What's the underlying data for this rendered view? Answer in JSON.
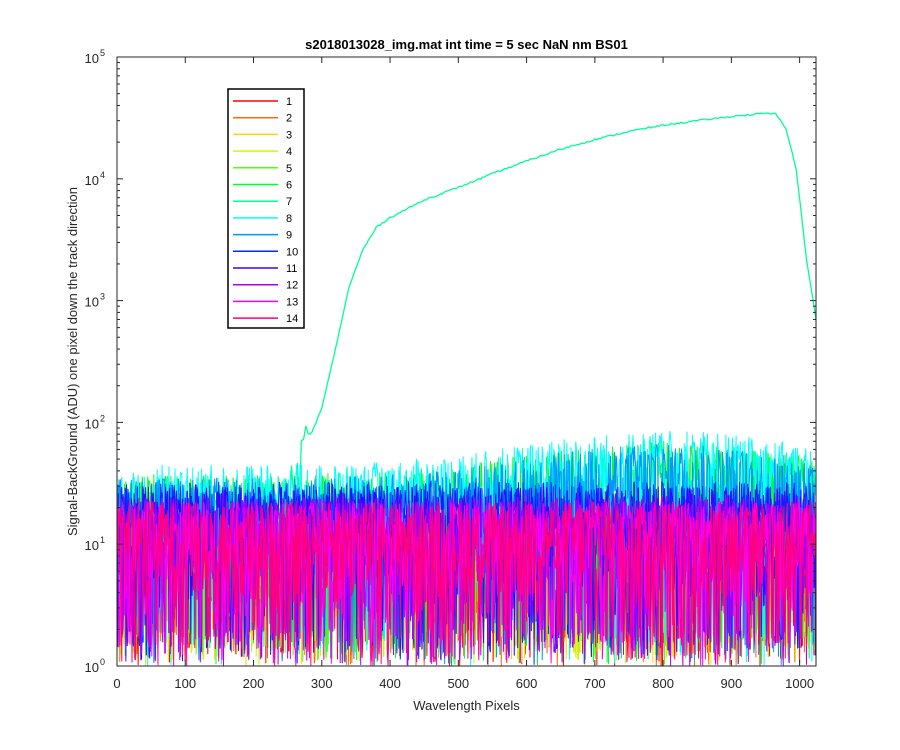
{
  "chart_data": {
    "type": "line",
    "title": "s2018013028_img.mat int time = 5 sec  NaN nm BS01",
    "xlabel": "Wavelength Pixels",
    "ylabel": "Signal-BackGround (ADU) one pixel down the track direction",
    "xlim": [
      0,
      1024
    ],
    "ylim": [
      1,
      100000
    ],
    "yscale": "log",
    "grid": false,
    "legend_position": "top-left",
    "x_ticks": [
      0,
      100,
      200,
      300,
      400,
      500,
      600,
      700,
      800,
      900,
      1000
    ],
    "y_ticks": [
      {
        "value": 1,
        "base": "10",
        "exp": "0"
      },
      {
        "value": 10,
        "base": "10",
        "exp": "1"
      },
      {
        "value": 100,
        "base": "10",
        "exp": "2"
      },
      {
        "value": 1000,
        "base": "10",
        "exp": "3"
      },
      {
        "value": 10000,
        "base": "10",
        "exp": "4"
      },
      {
        "value": 100000,
        "base": "10",
        "exp": "5"
      }
    ],
    "series": [
      {
        "name": "1",
        "color": "#ff0000",
        "level": 9
      },
      {
        "name": "2",
        "color": "#ff6a00",
        "level": 9
      },
      {
        "name": "3",
        "color": "#ffd400",
        "level": 10
      },
      {
        "name": "4",
        "color": "#bfff00",
        "level": 11
      },
      {
        "name": "5",
        "color": "#55ff00",
        "level": 12
      },
      {
        "name": "6",
        "color": "#00ff2a",
        "level": 15
      },
      {
        "name": "7",
        "color": "#00ff95",
        "x": [
          0,
          250,
          270,
          280,
          300,
          320,
          340,
          360,
          380,
          400,
          450,
          500,
          550,
          600,
          650,
          700,
          750,
          800,
          850,
          900,
          950,
          965,
          980,
          995,
          1010,
          1024
        ],
        "values": [
          12,
          22,
          50,
          70,
          130,
          400,
          1300,
          2600,
          4000,
          4800,
          6700,
          8500,
          11000,
          14000,
          17500,
          21000,
          24500,
          27500,
          30000,
          32500,
          34500,
          34000,
          26000,
          12000,
          2200,
          700
        ]
      },
      {
        "name": "8",
        "color": "#00ffff",
        "level": 18
      },
      {
        "name": "9",
        "color": "#0095ff",
        "level": 14
      },
      {
        "name": "10",
        "color": "#002aff",
        "level": 13
      },
      {
        "name": "11",
        "color": "#4000ff",
        "level": 12
      },
      {
        "name": "12",
        "color": "#aa00ff",
        "level": 10
      },
      {
        "name": "13",
        "color": "#ff00ea",
        "level": 9
      },
      {
        "name": "14",
        "color": "#ff0080",
        "level": 9
      }
    ]
  }
}
